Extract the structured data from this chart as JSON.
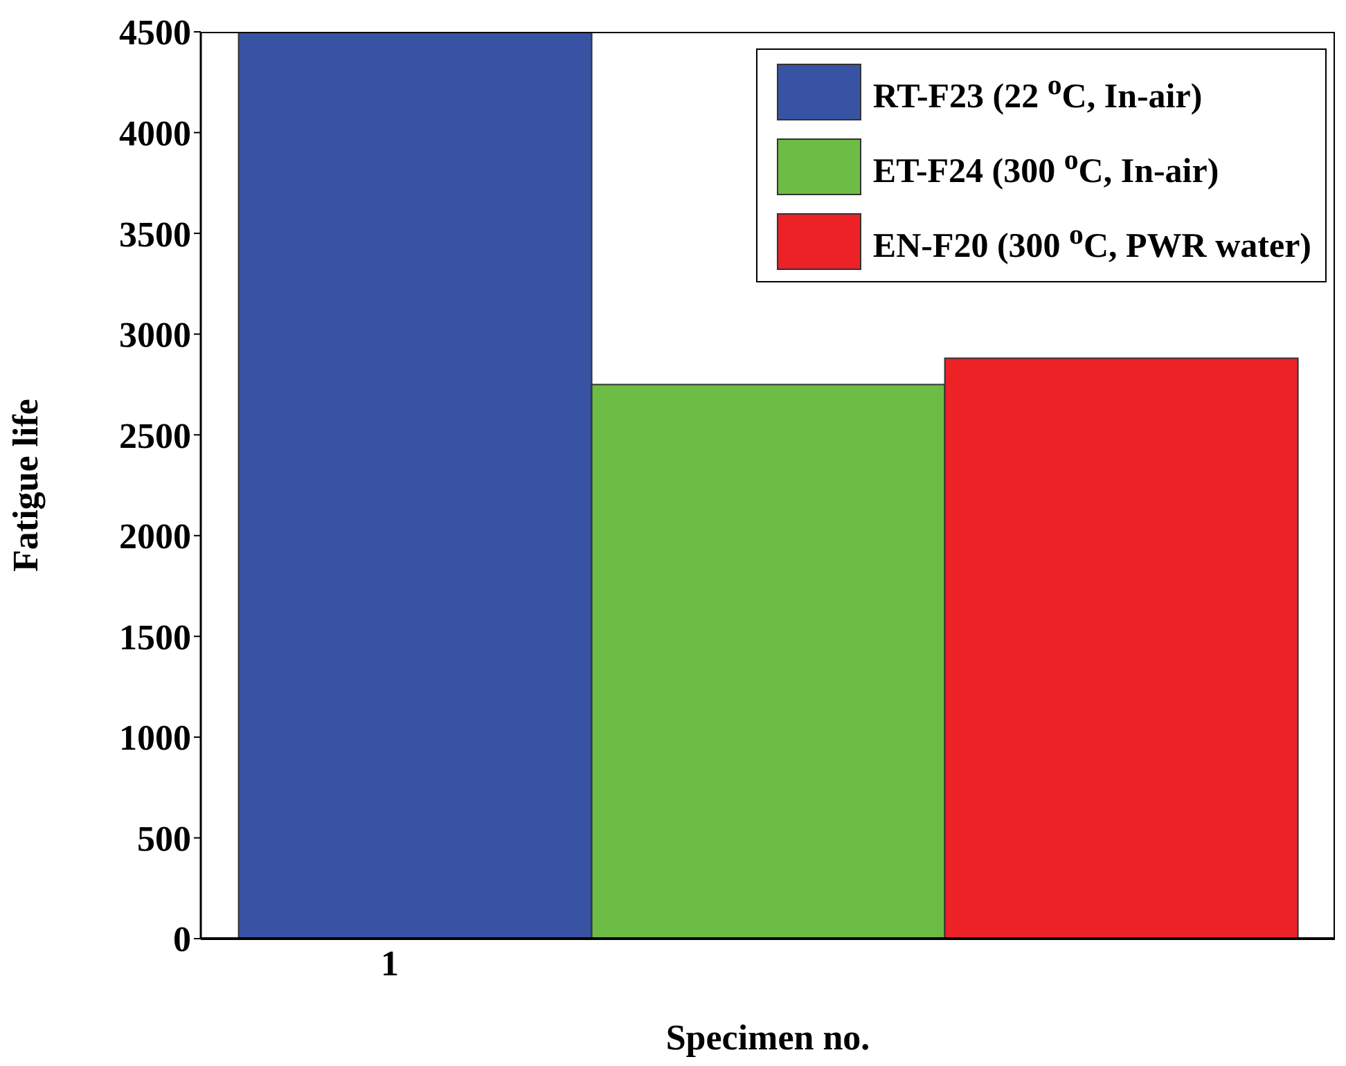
{
  "chart_data": {
    "type": "bar",
    "xlabel": "Specimen no.",
    "ylabel": "Fatigue life",
    "categories": [
      "1",
      null,
      null
    ],
    "series": [
      {
        "name": "RT-F23 (22 $^{o}$C, In-air)",
        "color": "#3953a4",
        "values": [
          4500,
          null,
          null
        ]
      },
      {
        "name": "ET-F24 (300 $^{o}$C, In-air)",
        "color": "#6cbc45",
        "values": [
          null,
          2750,
          null
        ]
      },
      {
        "name": "EN-F20 (300 $^{o}$C, PWR water)",
        "color": "#ec2227",
        "values": [
          null,
          null,
          2880
        ]
      }
    ],
    "ylim": [
      0,
      4500
    ],
    "yticks": [
      0,
      500,
      1000,
      1500,
      2000,
      2500,
      3000,
      3500,
      4000,
      4500
    ],
    "grid": false,
    "legend": "top right"
  }
}
